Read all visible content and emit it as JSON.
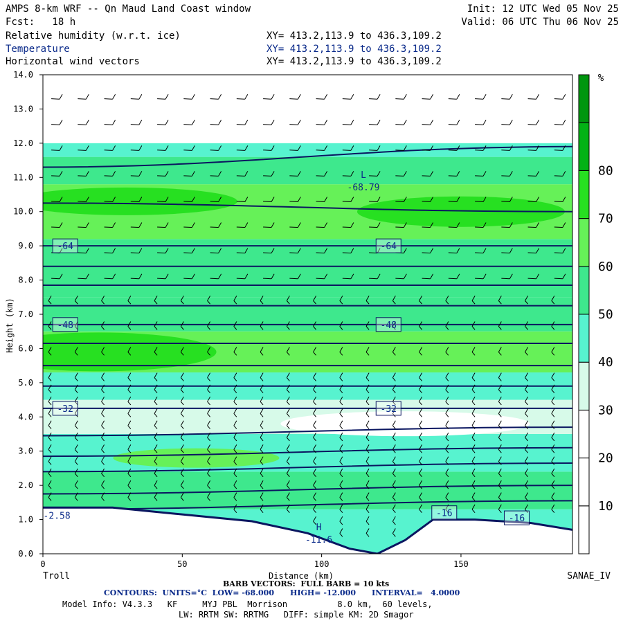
{
  "header": {
    "line1_left": "AMPS 8-km WRF -- Qn Maud Land Coast window",
    "line1_right": "Init: 12 UTC Wed 05 Nov 25",
    "line2_left": "Fcst:   18 h",
    "line2_right": "Valid: 06 UTC Thu 06 Nov 25",
    "fields": [
      {
        "name": "Relative humidity (w.r.t. ice)",
        "xy": "XY= 413.2,113.9 to 436.3,109.2",
        "color": "#000000"
      },
      {
        "name": "Temperature",
        "xy": "XY= 413.2,113.9 to 436.3,109.2",
        "color": "#0a2a8a"
      },
      {
        "name": "Horizontal wind vectors",
        "xy": "XY= 413.2,113.9 to 436.3,109.2",
        "color": "#000000"
      }
    ]
  },
  "footer": {
    "left_endpoint": "Troll",
    "right_endpoint": "SANAE_IV",
    "barb_line": "BARB VECTORS:  FULL BARB = 10 kts",
    "contours_line": "CONTOURS:  UNITS=°C  LOW= -68.000      HIGH= -12.000      INTERVAL=   4.0000",
    "model_line": "Model Info: V4.3.3   KF     MYJ PBL  Morrison          8.0 km,  60 levels,",
    "physics_line": "LW: RRTM SW: RRTMG   DIFF: simple KM: 2D Smagor"
  },
  "chart_data": {
    "type": "heatmap",
    "title": "Relative humidity (w.r.t. ice) / Temperature / Horizontal wind vectors",
    "xlabel": "Distance (km)",
    "ylabel": "Height (km)",
    "xlim": [
      0,
      190
    ],
    "ylim": [
      0,
      14
    ],
    "x_ticks": [
      0,
      50,
      100,
      150
    ],
    "y_ticks": [
      "0.0",
      "1.0",
      "2.0",
      "3.0",
      "4.0",
      "5.0",
      "6.0",
      "7.0",
      "8.0",
      "9.0",
      "10.0",
      "11.0",
      "12.0",
      "13.0",
      "14.0"
    ],
    "colorbar": {
      "unit": "%",
      "tick_labels": [
        "10",
        "20",
        "30",
        "40",
        "50",
        "60",
        "70",
        "80"
      ],
      "colors": [
        "#ffffff",
        "#ffffff",
        "#ffffff",
        "#d7fae9",
        "#57f3cf",
        "#3ee88d",
        "#66f158",
        "#27e021",
        "#03b215",
        "#00960f"
      ]
    },
    "terrain_height_km": [
      [
        0,
        1.35
      ],
      [
        25,
        1.35
      ],
      [
        50,
        1.15
      ],
      [
        75,
        0.95
      ],
      [
        95,
        0.6
      ],
      [
        110,
        0.15
      ],
      [
        120,
        0.0
      ],
      [
        130,
        0.4
      ],
      [
        140,
        1.0
      ],
      [
        155,
        1.0
      ],
      [
        175,
        0.9
      ],
      [
        190,
        0.7
      ]
    ],
    "isotherm_labels": [
      {
        "text": "-64",
        "x": 8,
        "y": 9.0
      },
      {
        "text": "-64",
        "x": 124,
        "y": 9.0
      },
      {
        "text": "-48",
        "x": 8,
        "y": 6.7
      },
      {
        "text": "-48",
        "x": 124,
        "y": 6.7
      },
      {
        "text": "-32",
        "x": 8,
        "y": 4.25
      },
      {
        "text": "-32",
        "x": 124,
        "y": 4.25
      },
      {
        "text": "-16",
        "x": 144,
        "y": 1.2
      },
      {
        "text": "-16",
        "x": 170,
        "y": 1.05
      }
    ],
    "extrema": [
      {
        "type": "L",
        "value": "-68.79",
        "x": 115,
        "y": 10.7
      },
      {
        "type": "H",
        "value": "-11.6",
        "x": 99,
        "y": 0.4
      },
      {
        "type": "",
        "value": "-2.58",
        "x": 5,
        "y": 1.1
      }
    ],
    "grid": false
  }
}
